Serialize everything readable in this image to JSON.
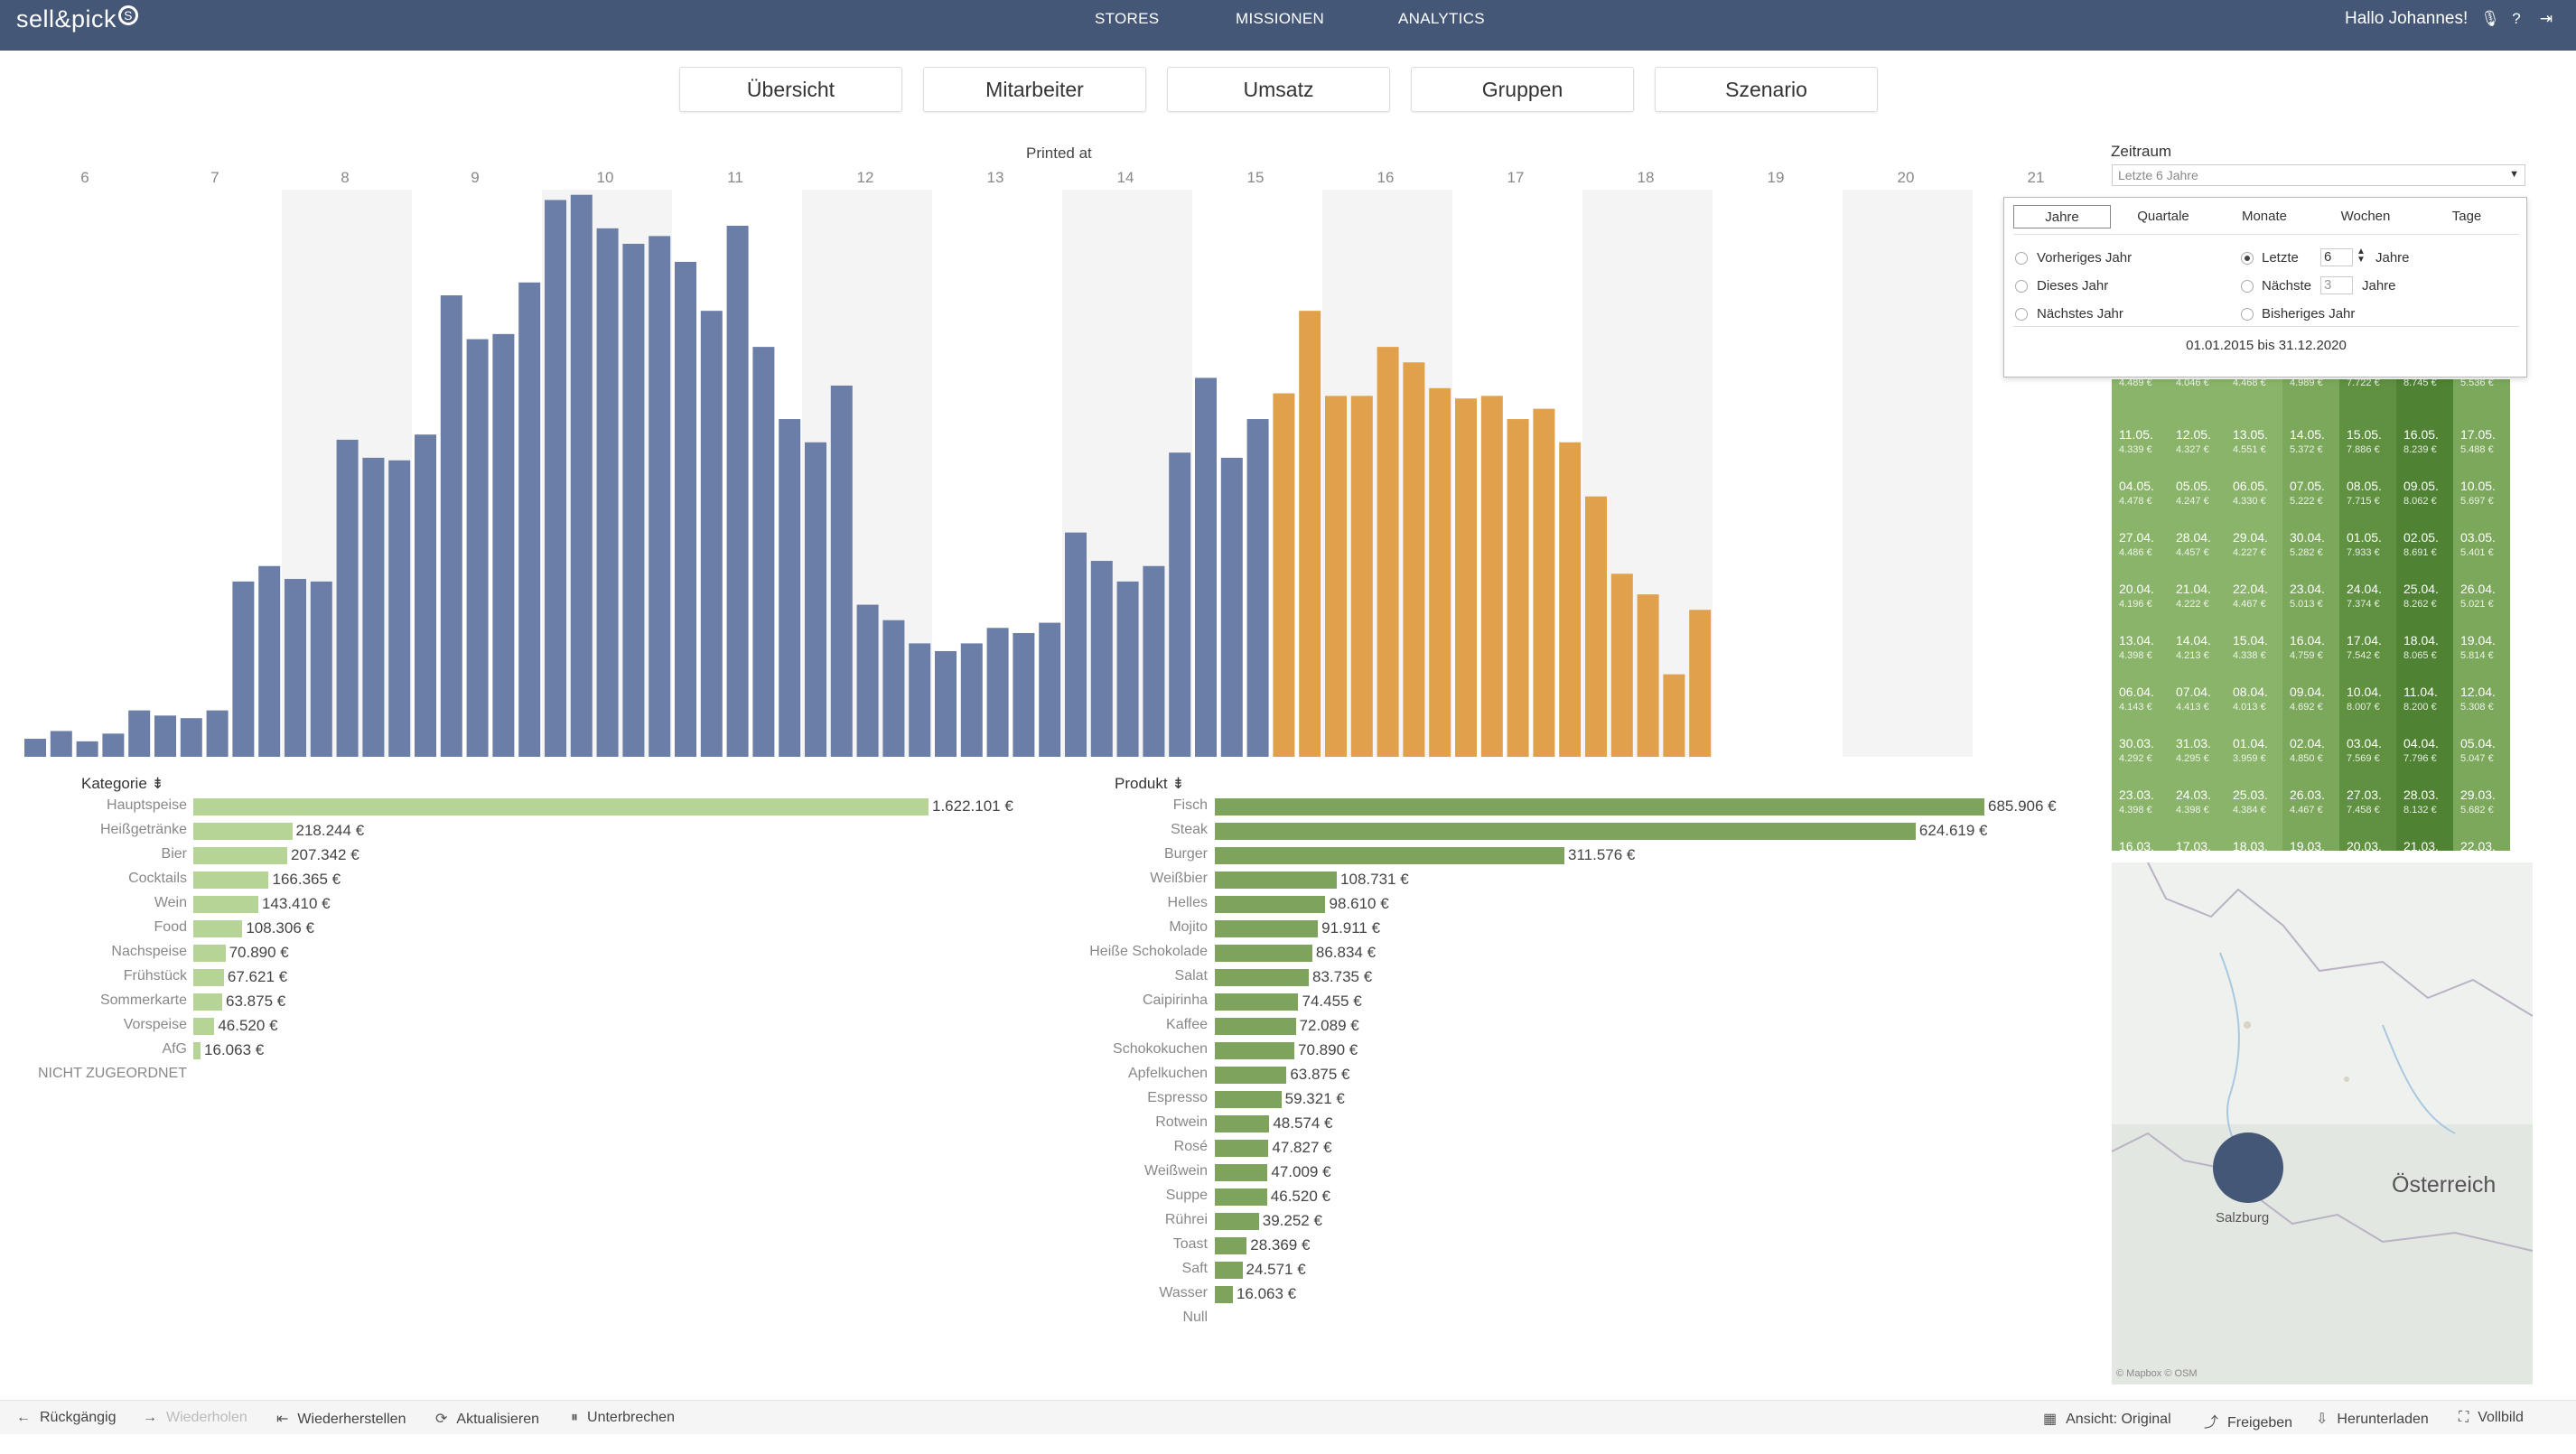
{
  "app": {
    "brand": "sell&pick",
    "brand_icon": "swirl-icon"
  },
  "nav": [
    {
      "label": "STORES"
    },
    {
      "label": "MISSIONEN"
    },
    {
      "label": "ANALYTICS"
    }
  ],
  "user": {
    "greeting": "Hallo Johannes!"
  },
  "tabs": [
    {
      "label": "Übersicht"
    },
    {
      "label": "Mitarbeiter"
    },
    {
      "label": "Umsatz"
    },
    {
      "label": "Gruppen"
    },
    {
      "label": "Szenario"
    }
  ],
  "chart_data": [
    {
      "type": "bar",
      "title": "Printed at",
      "x_ticks": [
        "6",
        "7",
        "8",
        "9",
        "10",
        "11",
        "12",
        "13",
        "14",
        "15",
        "16",
        "17",
        "18",
        "19",
        "20",
        "21"
      ],
      "colors": {
        "blue": "#6b7ea8",
        "orange": "#e0a04c"
      },
      "series": [
        {
          "values": [
            0.7,
            1,
            0.6,
            0.9,
            1.8,
            1.6,
            1.5,
            1.8,
            6.8,
            7.4,
            6.9,
            6.8,
            12.3,
            11.6,
            11.5,
            12.5,
            17.9,
            16.2,
            16.4,
            18.4,
            21.6,
            21.8,
            20.5,
            19.9,
            20.2,
            19.2,
            17.3,
            20.6,
            15.9,
            13.1,
            12.2,
            14.4,
            5.9,
            5.3,
            4.4,
            4.1,
            4.4,
            5,
            4.8,
            5.2,
            8.7,
            7.6,
            6.8,
            7.4,
            11.8,
            14.7,
            11.6,
            13.1,
            14.1,
            17.3,
            14,
            14,
            15.9,
            15.3,
            14.3,
            13.9,
            14,
            13.1,
            13.5,
            12.2,
            10.1,
            7.1,
            6.3,
            3.2,
            5.7
          ]
        }
      ]
    },
    {
      "type": "bar",
      "title": "Kategorie",
      "orientation": "horizontal",
      "color": "#b5d495",
      "categories": [
        "Hauptspeise",
        "Heißgetränke",
        "Bier",
        "Cocktails",
        "Wein",
        "Food",
        "Nachspeise",
        "Frühstück",
        "Sommerkarte",
        "Vorspeise",
        "AfG",
        "NICHT ZUGEORDNET"
      ],
      "values": [
        1622101,
        218244,
        207342,
        166365,
        143410,
        108306,
        70890,
        67621,
        63875,
        46520,
        16063,
        null
      ],
      "labels": [
        "1.622.101 €",
        "218.244 €",
        "207.342 €",
        "166.365 €",
        "143.410 €",
        "108.306 €",
        "70.890 €",
        "67.621 €",
        "63.875 €",
        "46.520 €",
        "16.063 €",
        ""
      ]
    },
    {
      "type": "bar",
      "title": "Produkt",
      "orientation": "horizontal",
      "color": "#7ea35c",
      "categories": [
        "Fisch",
        "Steak",
        "Burger",
        "Weißbier",
        "Helles",
        "Mojito",
        "Heiße Schokolade",
        "Salat",
        "Caipirinha",
        "Kaffee",
        "Schokokuchen",
        "Apfelkuchen",
        "Espresso",
        "Rotwein",
        "Rosé",
        "Weißwein",
        "Suppe",
        "Rührei",
        "Toast",
        "Saft",
        "Wasser",
        "Null"
      ],
      "values": [
        685906,
        624619,
        311576,
        108731,
        98610,
        91911,
        86834,
        83735,
        74455,
        72089,
        70890,
        63875,
        59321,
        48574,
        47827,
        47009,
        46520,
        39252,
        28369,
        24571,
        16063,
        null
      ],
      "labels": [
        "685.906 €",
        "624.619 €",
        "311.576 €",
        "108.731 €",
        "98.610 €",
        "91.911 €",
        "86.834 €",
        "83.735 €",
        "74.455 €",
        "72.089 €",
        "70.890 €",
        "63.875 €",
        "59.321 €",
        "48.574 €",
        "47.827 €",
        "47.009 €",
        "46.520 €",
        "39.252 €",
        "28.369 €",
        "24.571 €",
        "16.063 €",
        ""
      ]
    },
    {
      "type": "heatmap",
      "rows": [
        [
          {
            "d": "",
            "v": "4.489 €"
          },
          {
            "d": "",
            "v": "4.046 €"
          },
          {
            "d": "",
            "v": "4.468 €"
          },
          {
            "d": "",
            "v": "4.989 €"
          },
          {
            "d": "",
            "v": "7.722 €"
          },
          {
            "d": "",
            "v": "8.745 €"
          },
          {
            "d": "",
            "v": "5.536 €"
          }
        ],
        [
          {
            "d": "11.05.",
            "v": "4.339 €"
          },
          {
            "d": "12.05.",
            "v": "4.327 €"
          },
          {
            "d": "13.05.",
            "v": "4.551 €"
          },
          {
            "d": "14.05.",
            "v": "5.372 €"
          },
          {
            "d": "15.05.",
            "v": "7.886 €"
          },
          {
            "d": "16.05.",
            "v": "8.239 €"
          },
          {
            "d": "17.05.",
            "v": "5.488 €"
          }
        ],
        [
          {
            "d": "04.05.",
            "v": "4.478 €"
          },
          {
            "d": "05.05.",
            "v": "4.247 €"
          },
          {
            "d": "06.05.",
            "v": "4.330 €"
          },
          {
            "d": "07.05.",
            "v": "5.222 €"
          },
          {
            "d": "08.05.",
            "v": "7.715 €"
          },
          {
            "d": "09.05.",
            "v": "8.062 €"
          },
          {
            "d": "10.05.",
            "v": "5.697 €"
          }
        ],
        [
          {
            "d": "27.04.",
            "v": "4.486 €"
          },
          {
            "d": "28.04.",
            "v": "4.457 €"
          },
          {
            "d": "29.04.",
            "v": "4.227 €"
          },
          {
            "d": "30.04.",
            "v": "5.282 €"
          },
          {
            "d": "01.05.",
            "v": "7.933 €"
          },
          {
            "d": "02.05.",
            "v": "8.691 €"
          },
          {
            "d": "03.05.",
            "v": "5.401 €"
          }
        ],
        [
          {
            "d": "20.04.",
            "v": "4.196 €"
          },
          {
            "d": "21.04.",
            "v": "4.222 €"
          },
          {
            "d": "22.04.",
            "v": "4.467 €"
          },
          {
            "d": "23.04.",
            "v": "5.013 €"
          },
          {
            "d": "24.04.",
            "v": "7.374 €"
          },
          {
            "d": "25.04.",
            "v": "8.262 €"
          },
          {
            "d": "26.04.",
            "v": "5.021 €"
          }
        ],
        [
          {
            "d": "13.04.",
            "v": "4.398 €"
          },
          {
            "d": "14.04.",
            "v": "4.213 €"
          },
          {
            "d": "15.04.",
            "v": "4.338 €"
          },
          {
            "d": "16.04.",
            "v": "4.759 €"
          },
          {
            "d": "17.04.",
            "v": "7.542 €"
          },
          {
            "d": "18.04.",
            "v": "8.065 €"
          },
          {
            "d": "19.04.",
            "v": "5.814 €"
          }
        ],
        [
          {
            "d": "06.04.",
            "v": "4.143 €"
          },
          {
            "d": "07.04.",
            "v": "4.413 €"
          },
          {
            "d": "08.04.",
            "v": "4.013 €"
          },
          {
            "d": "09.04.",
            "v": "4.692 €"
          },
          {
            "d": "10.04.",
            "v": "8.007 €"
          },
          {
            "d": "11.04.",
            "v": "8.200 €"
          },
          {
            "d": "12.04.",
            "v": "5.308 €"
          }
        ],
        [
          {
            "d": "30.03.",
            "v": "4.292 €"
          },
          {
            "d": "31.03.",
            "v": "4.295 €"
          },
          {
            "d": "01.04.",
            "v": "3.959 €"
          },
          {
            "d": "02.04.",
            "v": "4.850 €"
          },
          {
            "d": "03.04.",
            "v": "7.569 €"
          },
          {
            "d": "04.04.",
            "v": "7.796 €"
          },
          {
            "d": "05.04.",
            "v": "5.047 €"
          }
        ],
        [
          {
            "d": "23.03.",
            "v": "4.398 €"
          },
          {
            "d": "24.03.",
            "v": "4.398 €"
          },
          {
            "d": "25.03.",
            "v": "4.384 €"
          },
          {
            "d": "26.03.",
            "v": "4.467 €"
          },
          {
            "d": "27.03.",
            "v": "7.458 €"
          },
          {
            "d": "28.03.",
            "v": "8.132 €"
          },
          {
            "d": "29.03.",
            "v": "5.682 €"
          }
        ],
        [
          {
            "d": "16.03.",
            "v": ""
          },
          {
            "d": "17.03.",
            "v": ""
          },
          {
            "d": "18.03.",
            "v": ""
          },
          {
            "d": "19.03.",
            "v": ""
          },
          {
            "d": "20.03.",
            "v": ""
          },
          {
            "d": "21.03.",
            "v": ""
          },
          {
            "d": "22.03.",
            "v": ""
          }
        ]
      ],
      "colors": [
        "#8ab46a",
        "#8ab46a",
        "#8ab46a",
        "#7ca85c",
        "#5f9140",
        "#4f8233",
        "#7ca85c"
      ]
    }
  ],
  "zeitraum": {
    "label": "Zeitraum",
    "selected": "Letzte 6 Jahre",
    "tabs": [
      "Jahre",
      "Quartale",
      "Monate",
      "Wochen",
      "Tage"
    ],
    "active_tab": "Jahre",
    "options_left": [
      "Vorheriges Jahr",
      "Dieses Jahr",
      "Nächstes Jahr"
    ],
    "letzte": {
      "label": "Letzte",
      "value": "6",
      "unit": "Jahre"
    },
    "naechste": {
      "label": "Nächste",
      "value": "3",
      "unit": "Jahre"
    },
    "bisheriges": "Bisheriges Jahr",
    "range": "01.01.2015 bis 31.12.2020"
  },
  "map": {
    "city": "Salzburg",
    "country": "Österreich",
    "attribution": "© Mapbox © OSM"
  },
  "bottom": {
    "undo": "Rückgängig",
    "redo": "Wiederholen",
    "revert": "Wiederherstellen",
    "refresh": "Aktualisieren",
    "pause": "Unterbrechen",
    "view": "Ansicht: Original",
    "share": "Freigeben",
    "download": "Herunterladen",
    "fullscreen": "Vollbild"
  }
}
